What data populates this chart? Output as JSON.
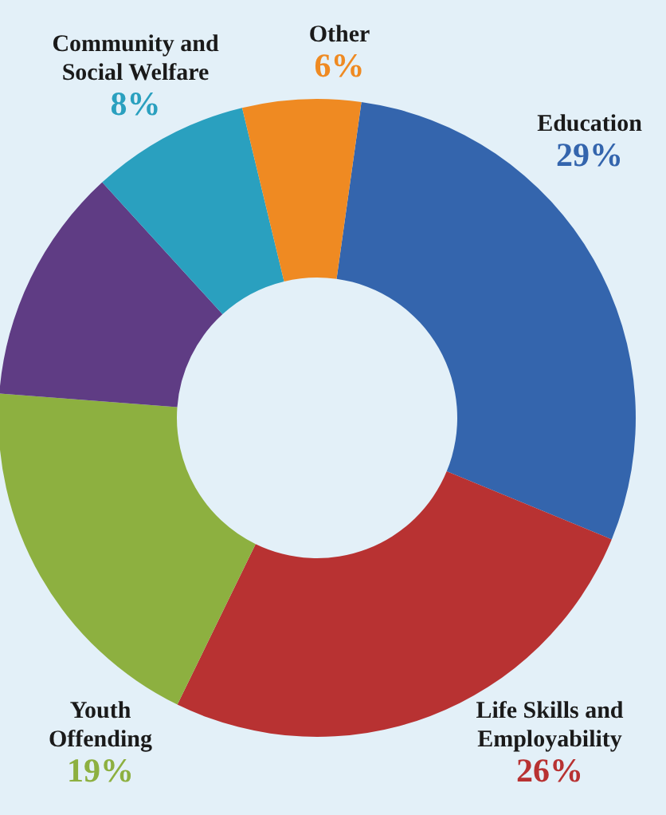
{
  "chart_data": {
    "type": "donut",
    "categories": [
      "Education",
      "Life Skills and Employability",
      "Youth Offending",
      null,
      "Community and Social Welfare",
      "Other"
    ],
    "values": [
      29,
      26,
      19,
      12,
      8,
      6
    ],
    "value_labels": [
      "29%",
      "26%",
      "19%",
      null,
      "8%",
      "6%"
    ],
    "colors": [
      "#3465ad",
      "#b83232",
      "#8db040",
      "#5f3c84",
      "#2aa0bf",
      "#ef8a22"
    ]
  }
}
